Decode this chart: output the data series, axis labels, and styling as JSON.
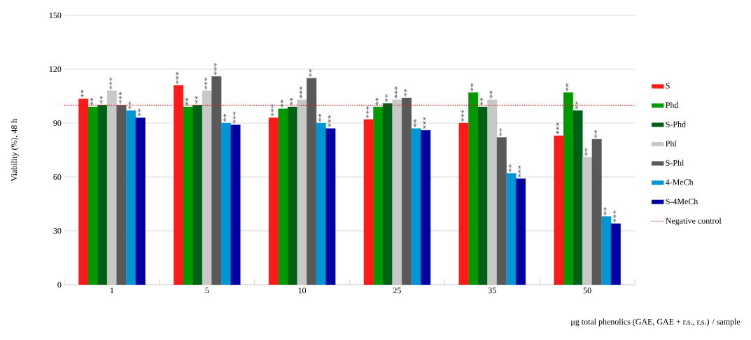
{
  "chart_data": {
    "type": "bar",
    "xlabel": "μg total phenolics (GAE, GAE + r.s., r.s.) / sample",
    "ylabel": "Viability (%),  48 h",
    "categories": [
      "1",
      "5",
      "10",
      "25",
      "35",
      "50"
    ],
    "series": [
      {
        "name": "S",
        "color": "#ff1a1a",
        "values": [
          103.5,
          111,
          93,
          92,
          90,
          83
        ],
        "value_labels": [
          "**",
          "***",
          "***",
          "***",
          "***",
          "***"
        ]
      },
      {
        "name": "Phd",
        "color": "#009900",
        "values": [
          99,
          99,
          98,
          99,
          107,
          107
        ],
        "value_labels": [
          "**",
          "**",
          "**",
          "**",
          "**",
          "**"
        ]
      },
      {
        "name": "S-Phd",
        "color": "#006018",
        "values": [
          100,
          100,
          99,
          101,
          99,
          97
        ],
        "value_labels": [
          "**",
          "**",
          "**",
          "**",
          "**",
          "**"
        ]
      },
      {
        "name": "Phl",
        "color": "#c8c8c8",
        "values": [
          108,
          108,
          103,
          103,
          103,
          71
        ],
        "value_labels": [
          "***",
          "***",
          "***",
          "***",
          "**",
          "**"
        ]
      },
      {
        "name": "S-Phl",
        "color": "#595959",
        "values": [
          100,
          116,
          115,
          104,
          82,
          81
        ],
        "value_labels": [
          "***",
          "***",
          "**",
          "**",
          "**",
          "**"
        ]
      },
      {
        "name": "4-MeCh",
        "color": "#0096d6",
        "values": [
          97,
          90,
          90,
          87,
          62,
          38
        ],
        "value_labels": [
          "**",
          "**",
          "**",
          "**",
          "**",
          "**"
        ]
      },
      {
        "name": "S-4MeCh",
        "color": "#0000a0",
        "values": [
          93,
          89,
          87,
          86,
          59,
          34
        ],
        "value_labels": [
          "**",
          "***",
          "***",
          "***",
          "***",
          "***"
        ]
      }
    ],
    "ref_lines": [
      {
        "axis": "y",
        "value": 100,
        "label": "Negative control",
        "color": "#ff0000",
        "line_style": "dotted"
      }
    ],
    "ylim": [
      0,
      150
    ],
    "yticks": [
      0,
      30,
      60,
      90,
      120,
      150
    ],
    "grid": "y",
    "legend": "right"
  }
}
